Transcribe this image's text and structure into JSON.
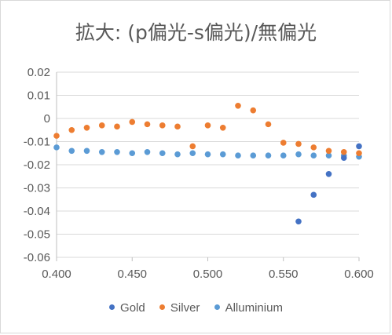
{
  "chart_data": {
    "type": "scatter",
    "title": "拡大: (p偏光-s偏光)/無偏光",
    "xlim": [
      0.4,
      0.6
    ],
    "ylim": [
      -0.06,
      0.02
    ],
    "x_ticks": [
      "0.400",
      "0.450",
      "0.500",
      "0.550",
      "0.600"
    ],
    "x_tick_values": [
      0.4,
      0.45,
      0.5,
      0.55,
      0.6
    ],
    "y_ticks": [
      "0.02",
      "0.01",
      "0",
      "-0.01",
      "-0.02",
      "-0.03",
      "-0.04",
      "-0.05",
      "-0.06"
    ],
    "y_tick_values": [
      0.02,
      0.01,
      0,
      -0.01,
      -0.02,
      -0.03,
      -0.04,
      -0.05,
      -0.06
    ],
    "grid": "horizontal",
    "legend_position": "bottom",
    "series": [
      {
        "name": "Gold",
        "color": "#4472c4",
        "points": [
          [
            0.56,
            -0.0445
          ],
          [
            0.57,
            -0.033
          ],
          [
            0.58,
            -0.024
          ],
          [
            0.59,
            -0.017
          ],
          [
            0.6,
            -0.012
          ]
        ]
      },
      {
        "name": "Silver",
        "color": "#ed7d31",
        "points": [
          [
            0.4,
            -0.0075
          ],
          [
            0.41,
            -0.005
          ],
          [
            0.42,
            -0.004
          ],
          [
            0.43,
            -0.003
          ],
          [
            0.44,
            -0.0035
          ],
          [
            0.45,
            -0.0015
          ],
          [
            0.46,
            -0.0025
          ],
          [
            0.47,
            -0.003
          ],
          [
            0.48,
            -0.0035
          ],
          [
            0.49,
            -0.012
          ],
          [
            0.5,
            -0.003
          ],
          [
            0.51,
            -0.004
          ],
          [
            0.52,
            0.0055
          ],
          [
            0.53,
            0.0035
          ],
          [
            0.54,
            -0.0025
          ],
          [
            0.55,
            -0.0105
          ],
          [
            0.56,
            -0.011
          ],
          [
            0.57,
            -0.0125
          ],
          [
            0.58,
            -0.014
          ],
          [
            0.59,
            -0.0145
          ],
          [
            0.6,
            -0.015
          ]
        ]
      },
      {
        "name": "Alluminium",
        "color": "#5b9bd5",
        "points": [
          [
            0.4,
            -0.0125
          ],
          [
            0.41,
            -0.014
          ],
          [
            0.42,
            -0.014
          ],
          [
            0.43,
            -0.0145
          ],
          [
            0.44,
            -0.0145
          ],
          [
            0.45,
            -0.015
          ],
          [
            0.46,
            -0.0145
          ],
          [
            0.47,
            -0.015
          ],
          [
            0.48,
            -0.0155
          ],
          [
            0.49,
            -0.015
          ],
          [
            0.5,
            -0.0155
          ],
          [
            0.51,
            -0.0155
          ],
          [
            0.52,
            -0.016
          ],
          [
            0.53,
            -0.016
          ],
          [
            0.54,
            -0.016
          ],
          [
            0.55,
            -0.016
          ],
          [
            0.56,
            -0.0155
          ],
          [
            0.57,
            -0.016
          ],
          [
            0.58,
            -0.016
          ],
          [
            0.59,
            -0.016
          ],
          [
            0.6,
            -0.0165
          ]
        ]
      }
    ]
  }
}
